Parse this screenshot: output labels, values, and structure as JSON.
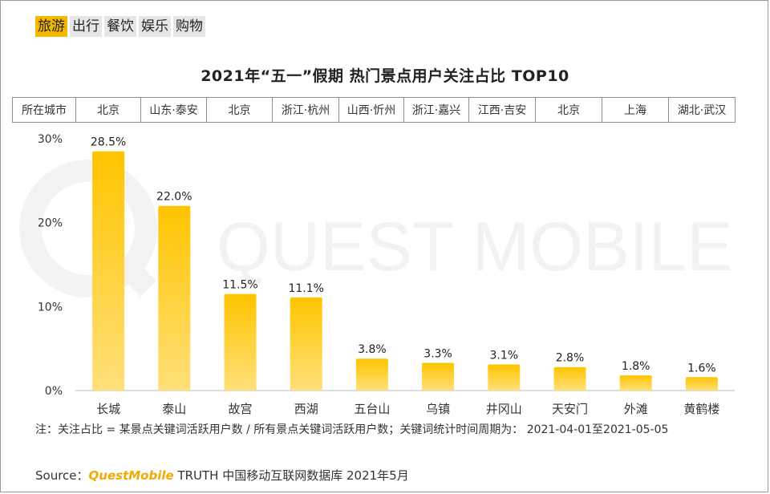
{
  "tabs": [
    "旅游",
    "出行",
    "餐饮",
    "娱乐",
    "购物"
  ],
  "active_tab": 0,
  "city_header": "所在城市",
  "watermark": "QUEST MOBILE",
  "note": "注：关注占比 = 某景点关键词活跃用户数 / 所有景点关键词活跃用户数；关键词统计时间周期为： 2021-04-01至2021-05-05",
  "source": {
    "prefix": "Source：",
    "brand": "QuestMobile",
    "suffix": " TRUTH 中国移动互联网数据库 2021年5月"
  },
  "colors": {
    "bar_top": "#ffc400",
    "bar_bottom": "#ffe07a",
    "active_tab": "#f5b800"
  },
  "chart_data": {
    "type": "bar",
    "title": "2021年“五一”假期 热门景点用户关注占比 TOP10",
    "categories": [
      "长城",
      "泰山",
      "故宫",
      "西湖",
      "五台山",
      "乌镇",
      "井冈山",
      "天安门",
      "外滩",
      "黄鹤楼"
    ],
    "cities": [
      "北京",
      "山东·泰安",
      "北京",
      "浙江·杭州",
      "山西·忻州",
      "浙江·嘉兴",
      "江西·吉安",
      "北京",
      "上海",
      "湖北·武汉"
    ],
    "values": [
      28.5,
      22.0,
      11.5,
      11.1,
      3.8,
      3.3,
      3.1,
      2.8,
      1.8,
      1.6
    ],
    "value_labels": [
      "28.5%",
      "22.0%",
      "11.5%",
      "11.1%",
      "3.8%",
      "3.3%",
      "3.1%",
      "2.8%",
      "1.8%",
      "1.6%"
    ],
    "ylim": [
      0,
      30
    ],
    "yticks": [
      "0%",
      "10%",
      "20%",
      "30%"
    ],
    "xlabel": "",
    "ylabel": "",
    "grid": false,
    "legend": "none"
  }
}
